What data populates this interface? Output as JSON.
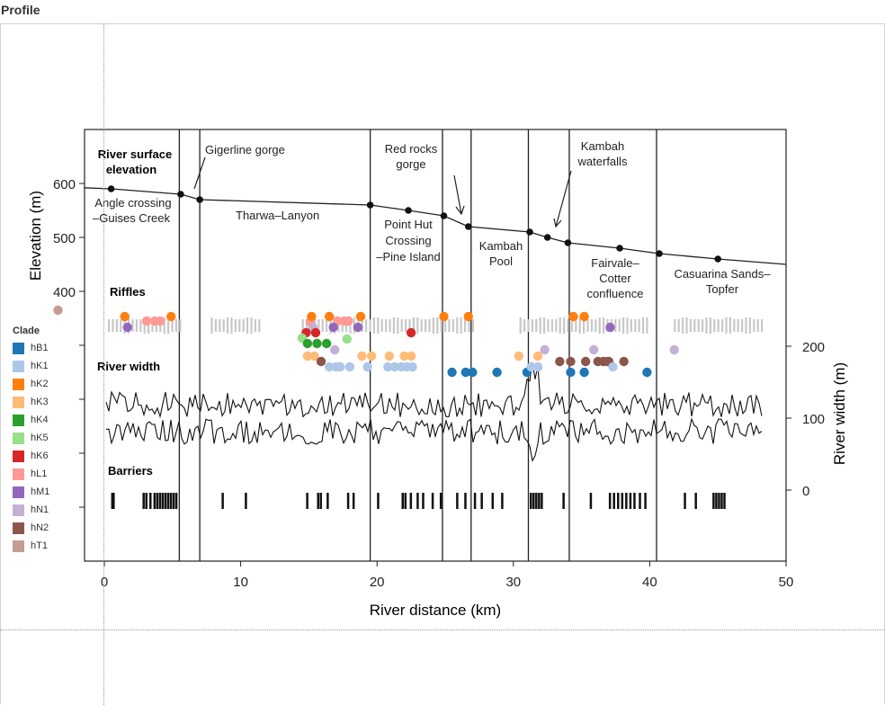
{
  "panel": {
    "title": "Profile"
  },
  "legend": {
    "title": "Clade",
    "items": [
      {
        "label": "hB1",
        "color": "#1f77b4"
      },
      {
        "label": "hK1",
        "color": "#aec7e8"
      },
      {
        "label": "hK2",
        "color": "#ff7f0e"
      },
      {
        "label": "hK3",
        "color": "#ffbb78"
      },
      {
        "label": "hK4",
        "color": "#2ca02c"
      },
      {
        "label": "hK5",
        "color": "#98df8a"
      },
      {
        "label": "hK6",
        "color": "#d62728"
      },
      {
        "label": "hL1",
        "color": "#ff9896"
      },
      {
        "label": "hM1",
        "color": "#9467bd"
      },
      {
        "label": "hN1",
        "color": "#c5b0d5"
      },
      {
        "label": "hN2",
        "color": "#8c564b"
      },
      {
        "label": "hT1",
        "color": "#c49c94"
      }
    ]
  },
  "figure": {
    "xlabel": "River distance (km)",
    "ylabel_left": "Elevation (m)",
    "ylabel_right": "River width (m)",
    "xticks": [
      "0",
      "10",
      "20",
      "30",
      "40",
      "50"
    ],
    "elev_ticks": [
      "600",
      "500",
      "400"
    ],
    "width_ticks": [
      "200",
      "100",
      "0"
    ],
    "headers": {
      "surface": "River surface elevation",
      "riffles": "Riffles",
      "width": "River width",
      "barriers": "Barriers"
    },
    "sections": [
      {
        "label": "Angle crossing –Guises Creek"
      },
      {
        "label": "Gigerline gorge"
      },
      {
        "label": "Tharwa–Lanyon"
      },
      {
        "label": "Point Hut Crossing –Pine Island"
      },
      {
        "label": "Red rocks gorge"
      },
      {
        "label": "Kambah Pool"
      },
      {
        "label": "Kambah waterfalls"
      },
      {
        "label": "Fairvale– Cotter confluence"
      },
      {
        "label": "Casuarina Sands– Topfer"
      }
    ]
  },
  "chart_data": {
    "type": "scatter",
    "xlabel": "River distance (km)",
    "ylabel": "Elevation (m)",
    "y2label": "River width (m)",
    "xlim": [
      -1.5,
      50
    ],
    "ylim": [
      260,
      700
    ],
    "y2lim": [
      -150,
      350
    ],
    "elevation_profile": {
      "x": [
        0.5,
        5.6,
        7,
        19.5,
        22.3,
        24.9,
        26.7,
        31.2,
        32.5,
        34,
        37.8,
        40.7,
        45
      ],
      "y": [
        590,
        580,
        570,
        560,
        550,
        540,
        520,
        510,
        500,
        490,
        480,
        470,
        460
      ]
    },
    "section_boundaries_km": [
      5.5,
      7,
      19.5,
      24.8,
      26.9,
      31.1,
      34.1,
      40.5
    ],
    "series": [
      {
        "name": "hB1",
        "x": [
          25.5,
          26.5,
          27,
          28.8,
          31
        ],
        "y": [
          1,
          1,
          1,
          1,
          1
        ]
      },
      {
        "name": "hK2",
        "x": [
          1.5,
          4.9,
          15.2,
          16.5,
          18.8,
          24.9,
          26.7,
          34.4,
          35.2
        ],
        "y": [
          1,
          1,
          1,
          1,
          1,
          1,
          1,
          1,
          1
        ]
      },
      {
        "name": "hM1",
        "x": [
          1.7,
          37.1
        ],
        "y": [
          1,
          1
        ]
      }
    ]
  }
}
